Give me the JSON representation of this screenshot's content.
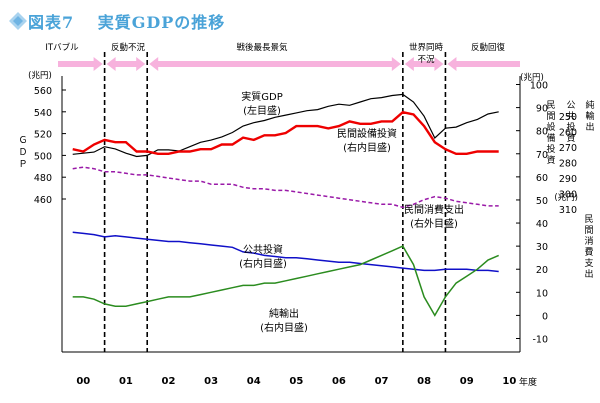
{
  "figure": {
    "title": "図表7　 実質GDPの推移"
  },
  "periods": [
    {
      "label": "ITバブル"
    },
    {
      "label": "反動不況"
    },
    {
      "label": "戦後最長景気"
    },
    {
      "label": "世界同時\n不況"
    },
    {
      "label": "反動回復"
    }
  ],
  "period_colors": {
    "arrow": "#f7b2dd",
    "divider": "#000000"
  },
  "chart_data": {
    "type": "line",
    "x": [
      2000.0,
      2000.25,
      2000.5,
      2000.75,
      2001.0,
      2001.25,
      2001.5,
      2001.75,
      2002.0,
      2002.25,
      2002.5,
      2002.75,
      2003.0,
      2003.25,
      2003.5,
      2003.75,
      2004.0,
      2004.25,
      2004.5,
      2004.75,
      2005.0,
      2005.25,
      2005.5,
      2005.75,
      2006.0,
      2006.25,
      2006.5,
      2006.75,
      2007.0,
      2007.25,
      2007.5,
      2007.75,
      2008.0,
      2008.25,
      2008.5,
      2008.75,
      2009.0,
      2009.25,
      2009.5,
      2009.75,
      2010.0
    ],
    "x_ticks": [
      {
        "value": 2000.25,
        "label": "00"
      },
      {
        "value": 2001.25,
        "label": "01"
      },
      {
        "value": 2002.25,
        "label": "02"
      },
      {
        "value": 2003.25,
        "label": "03"
      },
      {
        "value": 2004.25,
        "label": "04"
      },
      {
        "value": 2005.25,
        "label": "05"
      },
      {
        "value": 2006.25,
        "label": "06"
      },
      {
        "value": 2007.25,
        "label": "07"
      },
      {
        "value": 2008.25,
        "label": "08"
      },
      {
        "value": 2009.25,
        "label": "09"
      },
      {
        "value": 2010.25,
        "label": "10"
      }
    ],
    "x_unit": "年度",
    "xlim": [
      1999.75,
      2010.5
    ],
    "period_boundaries": [
      2000.75,
      2001.75,
      2007.75,
      2008.75
    ],
    "axes": {
      "gdp": {
        "label": "ＧＤＰ",
        "unit": "(兆円)",
        "ticks": [
          460,
          480,
          500,
          520,
          540,
          560
        ],
        "range": [
          0,
          560
        ]
      },
      "right_inner": {
        "label": "民間設備投資",
        "label_extra": "公共投資",
        "unit": "(兆円)",
        "ticks": [
          -10,
          0,
          10,
          20,
          30,
          40,
          50,
          60,
          70,
          80,
          90,
          100
        ],
        "range": [
          -10,
          100
        ]
      },
      "right_outer": {
        "label": "純輸出",
        "unit": "",
        "ticks": [],
        "range": [
          -10,
          100
        ]
      },
      "consumption": {
        "label": "民間消費支出",
        "unit": "(兆円)",
        "ticks": [
          250,
          260,
          270,
          280,
          290,
          300,
          310
        ],
        "range": [
          240,
          310
        ]
      }
    },
    "series": [
      {
        "name": "実質GDP",
        "axis_note": "(左目盛)",
        "color": "#000000",
        "axis": "gdp",
        "values": [
          501,
          502,
          503,
          508,
          506,
          502,
          499,
          500,
          505,
          505,
          504,
          508,
          512,
          514,
          517,
          521,
          527,
          530,
          532,
          535,
          537,
          539,
          541,
          542,
          545,
          547,
          546,
          549,
          552,
          553,
          555,
          556,
          549,
          536,
          516,
          525,
          526,
          530,
          533,
          538,
          540
        ]
      },
      {
        "name": "民間設備投資",
        "axis_note": "(右内目盛)",
        "color": "#ee0000",
        "axis": "right_inner",
        "values": [
          72,
          71,
          74,
          76,
          75,
          75,
          71,
          71,
          70,
          70,
          71,
          71,
          72,
          72,
          74,
          74,
          77,
          76,
          78,
          78,
          79,
          82,
          82,
          82,
          81,
          82,
          84,
          83,
          83,
          84,
          84,
          88,
          87,
          82,
          75,
          72,
          70,
          70,
          71,
          71,
          71
        ]
      },
      {
        "name": "民間消費支出",
        "axis_note": "(右外目盛)",
        "color": "#9a1aa8",
        "axis": "consumption",
        "values": [
          284,
          283,
          284,
          286,
          286,
          287,
          288,
          288,
          289,
          290,
          291,
          292,
          292,
          294,
          294,
          294,
          296,
          297,
          297,
          298,
          298,
          299,
          300,
          301,
          302,
          303,
          304,
          305,
          306,
          307,
          307,
          309,
          307,
          304,
          302,
          303,
          305,
          306,
          307,
          308,
          308
        ]
      },
      {
        "name": "公共投資",
        "axis_note": "(右内目盛)",
        "color": "#1010c8",
        "axis": "right_inner",
        "values": [
          36,
          35.5,
          35,
          34,
          34.5,
          34,
          33.5,
          33,
          32.5,
          32,
          32,
          31.5,
          31,
          30.5,
          30,
          29.5,
          27.5,
          27,
          26,
          25.5,
          25,
          25,
          24.5,
          24,
          23.5,
          23,
          23,
          22.5,
          22,
          21.5,
          21,
          20.5,
          20,
          19.5,
          19.5,
          20,
          20,
          20,
          19.5,
          19.5,
          19
        ]
      },
      {
        "name": "純輸出",
        "axis_note": "(右内目盛)",
        "color": "#2b8c1f",
        "axis": "right_inner",
        "values": [
          8,
          8,
          7,
          5,
          4,
          4,
          5,
          6,
          7,
          8,
          8,
          8,
          9,
          10,
          11,
          12,
          13,
          13,
          14,
          14,
          15,
          16,
          17,
          18,
          19,
          20,
          21,
          22,
          24,
          26,
          28,
          30,
          22,
          8,
          0,
          8,
          14,
          17,
          20,
          24,
          26
        ]
      }
    ]
  }
}
